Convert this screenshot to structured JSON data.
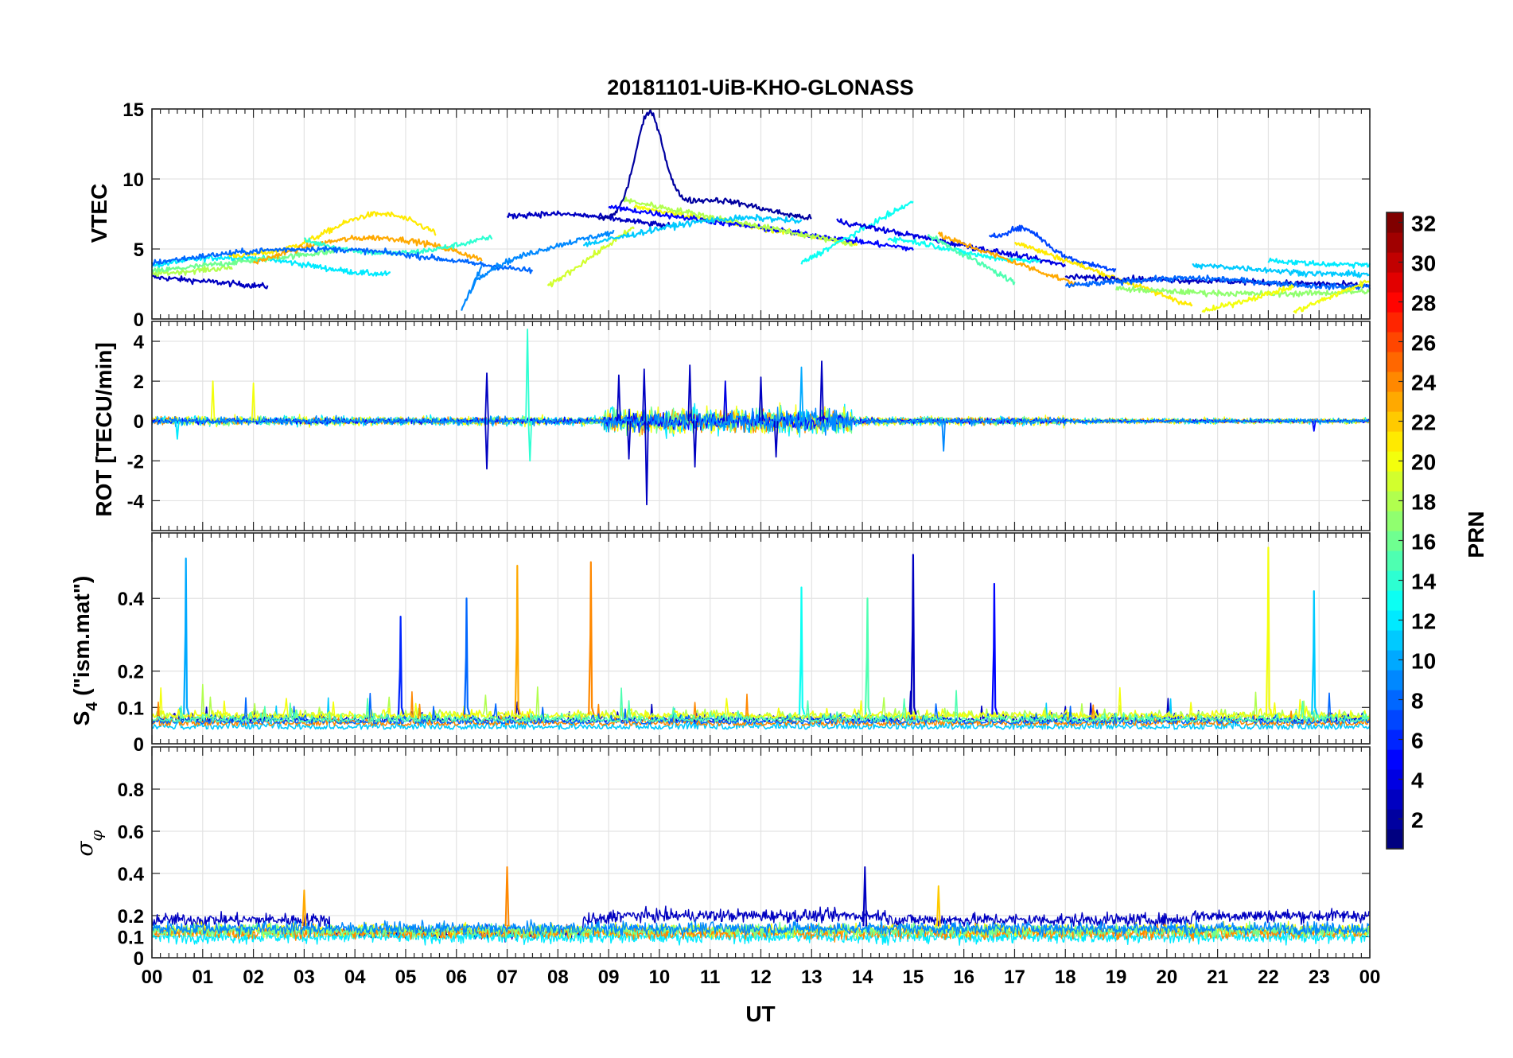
{
  "chart_data": {
    "title": "20181101-UiB-KHO-GLONASS",
    "type": "line",
    "xlabel": "UT",
    "xlim": [
      0,
      24
    ],
    "x_tick_labels": [
      "00",
      "01",
      "02",
      "03",
      "04",
      "05",
      "06",
      "07",
      "08",
      "09",
      "10",
      "11",
      "12",
      "13",
      "14",
      "15",
      "16",
      "17",
      "18",
      "19",
      "20",
      "21",
      "22",
      "23",
      "00"
    ],
    "panels": [
      {
        "name": "vtec",
        "ylabel": "VTEC",
        "ylim": [
          0,
          15
        ],
        "y_ticks": [
          0,
          5,
          10,
          15
        ],
        "y_tick_labels": [
          "0",
          "5",
          "10",
          "15"
        ],
        "series_description": "Vertical TEC per GLONASS PRN, 2-8 TECU background with peak near 14.5 TECU at 09:45 UT (PRN 2)",
        "peak": {
          "x": 9.75,
          "y": 14.5
        }
      },
      {
        "name": "rot",
        "ylabel": "ROT [TECU/min]",
        "ylim": [
          -5.5,
          5
        ],
        "y_ticks": [
          -4,
          -2,
          0,
          2,
          4
        ],
        "y_tick_labels": [
          "-4",
          "-2",
          "0",
          "2",
          "4"
        ],
        "series_description": "Rate of TEC, mostly within ±0.5, spikes to +4.6 near 07:25 UT and -4.2 near 09:45 UT",
        "extremes": [
          {
            "x": 7.4,
            "y": 4.6
          },
          {
            "x": 9.75,
            "y": -4.2
          }
        ]
      },
      {
        "name": "s4",
        "ylabel_main": "S",
        "ylabel_sub": "4",
        "ylabel_rest": " (\"ism.mat\")",
        "ylim": [
          0,
          0.58
        ],
        "y_ticks": [
          0,
          0.1,
          0.2,
          0.4
        ],
        "y_tick_labels": [
          "0",
          "0.1",
          "0.2",
          "0.4"
        ],
        "series_description": "S4 index ~0.05-0.1 background with spikes up to ~0.54",
        "spikes": [
          {
            "x": 0.67,
            "y": 0.51,
            "prn": 10
          },
          {
            "x": 4.9,
            "y": 0.35,
            "prn": 6
          },
          {
            "x": 6.2,
            "y": 0.4,
            "prn": 8
          },
          {
            "x": 7.2,
            "y": 0.49,
            "prn": 23
          },
          {
            "x": 8.65,
            "y": 0.5,
            "prn": 24
          },
          {
            "x": 12.8,
            "y": 0.43,
            "prn": 13
          },
          {
            "x": 14.1,
            "y": 0.4,
            "prn": 15
          },
          {
            "x": 15.0,
            "y": 0.52,
            "prn": 3
          },
          {
            "x": 16.6,
            "y": 0.44,
            "prn": 5
          },
          {
            "x": 22.0,
            "y": 0.54,
            "prn": 20
          },
          {
            "x": 22.9,
            "y": 0.42,
            "prn": 11
          }
        ]
      },
      {
        "name": "sigma_phi",
        "ylabel_main": "σ",
        "ylabel_sub": "φ",
        "ylim": [
          0,
          1
        ],
        "y_ticks": [
          0,
          0.1,
          0.2,
          0.4,
          0.6,
          0.8
        ],
        "y_tick_labels": [
          "0",
          "0.1",
          "0.2",
          "0.4",
          "0.6",
          "0.8"
        ],
        "series_description": "Phase scintillation index ~0.1-0.3, spike to 0.43 near 07:00 UT and 14:05 UT"
      }
    ],
    "colorbar": {
      "label": "PRN",
      "range": [
        1,
        32
      ],
      "tick_labels": [
        "2",
        "4",
        "6",
        "8",
        "10",
        "12",
        "14",
        "16",
        "18",
        "20",
        "22",
        "24",
        "26",
        "28",
        "30",
        "32"
      ],
      "colormap": "jet"
    }
  }
}
